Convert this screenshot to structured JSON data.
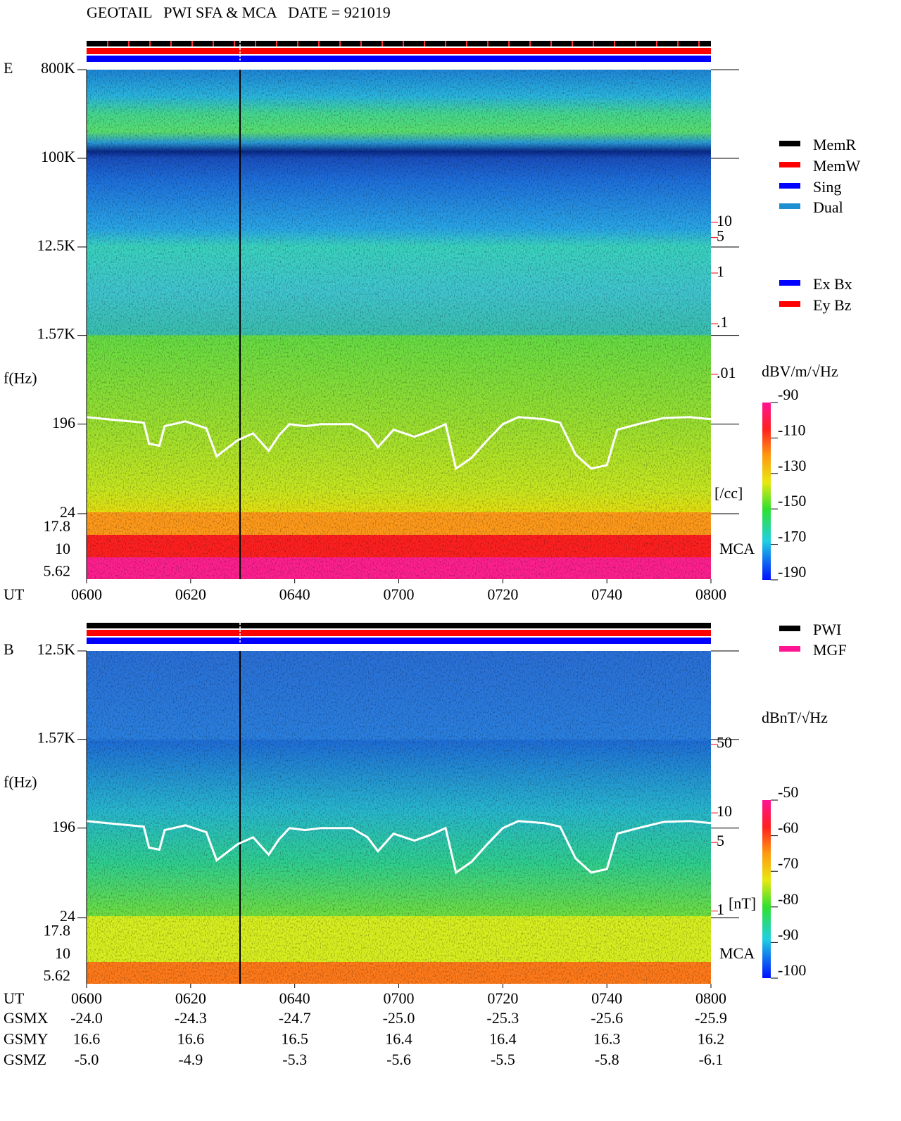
{
  "title": "GEOTAIL   PWI SFA & MCA   DATE = 921019",
  "chart_data": [
    {
      "type": "spectrogram",
      "panel_label": "E",
      "y_label": "f(Hz)",
      "x_label": "UT",
      "log_scale": true,
      "ylim": [
        24,
        800000
      ],
      "yticks": [
        {
          "value": 800000,
          "label": "800K"
        },
        {
          "value": 100000,
          "label": "100K"
        },
        {
          "value": 12500,
          "label": "12.5K"
        },
        {
          "value": 1570,
          "label": "1.57K"
        },
        196,
        24
      ],
      "mca_channels": [
        "17.8",
        "10",
        "5.62"
      ],
      "mca_label": "MCA",
      "xlim": [
        360,
        480
      ],
      "xticks": [
        {
          "value": 360,
          "label": "0600"
        },
        {
          "value": 380,
          "label": "0620"
        },
        {
          "value": 400,
          "label": "0640"
        },
        {
          "value": 420,
          "label": "0700"
        },
        {
          "value": 440,
          "label": "0720"
        },
        {
          "value": 460,
          "label": "0740"
        },
        {
          "value": 480,
          "label": "0800"
        }
      ],
      "side_scale": {
        "unit_label": "[/cc]",
        "color": "#ff0000",
        "ticks": [
          10,
          5,
          1,
          {
            "value": 0.1,
            "label": ".1"
          },
          {
            "value": 0.01,
            "label": ".01"
          }
        ]
      },
      "colorbar": {
        "label": "dBV/m/√Hz",
        "clim": [
          -190,
          -90
        ],
        "ticks": [
          -90,
          -110,
          -130,
          -150,
          -170,
          -190
        ]
      },
      "legend": [
        {
          "name": "MemR",
          "color": "#000000"
        },
        {
          "name": "MemW",
          "color": "#ff0000"
        },
        {
          "name": "Sing",
          "color": "#0000ff"
        },
        {
          "name": "Dual",
          "color": "#1e8fd0"
        }
      ],
      "legend2": [
        {
          "name": "Ex Bx",
          "color": "#0000ff"
        },
        {
          "name": "Ey Bz",
          "color": "#ff0000"
        }
      ]
    },
    {
      "type": "spectrogram",
      "panel_label": "B",
      "y_label": "f(Hz)",
      "x_label": "UT",
      "log_scale": true,
      "ylim": [
        24,
        12500
      ],
      "yticks": [
        {
          "value": 12500,
          "label": "12.5K"
        },
        {
          "value": 1570,
          "label": "1.57K"
        },
        196,
        24
      ],
      "mca_channels": [
        "17.8",
        "10",
        "5.62"
      ],
      "mca_label": "MCA",
      "xlim": [
        360,
        480
      ],
      "xticks": [
        {
          "value": 360,
          "label": "0600"
        },
        {
          "value": 380,
          "label": "0620"
        },
        {
          "value": 400,
          "label": "0640"
        },
        {
          "value": 420,
          "label": "0700"
        },
        {
          "value": 440,
          "label": "0720"
        },
        {
          "value": 460,
          "label": "0740"
        },
        {
          "value": 480,
          "label": "0800"
        }
      ],
      "side_scale": {
        "unit_label": "[nT]",
        "color": "#ff0000",
        "ticks": [
          50,
          10,
          5,
          1
        ]
      },
      "colorbar": {
        "label": "dBnT/√Hz",
        "clim": [
          -100,
          -50
        ],
        "ticks": [
          -50,
          -60,
          -70,
          -80,
          -90,
          -100
        ]
      },
      "legend": [
        {
          "name": "PWI",
          "color": "#000000"
        },
        {
          "name": "MGF",
          "color": "#ff1493"
        }
      ]
    }
  ],
  "trace": {
    "x": [
      360,
      364,
      371,
      372,
      374,
      375,
      379,
      383,
      385,
      389,
      392,
      395,
      397,
      399,
      402,
      405,
      408,
      411,
      414,
      416,
      419,
      423,
      426,
      429,
      431,
      434,
      437,
      440,
      443,
      448,
      451,
      454,
      457,
      460,
      462,
      466,
      471,
      476,
      480
    ],
    "values": [
      231,
      220,
      203,
      124,
      118,
      187,
      209,
      178,
      92,
      134,
      158,
      105,
      151,
      196,
      187,
      196,
      196,
      196,
      158,
      114,
      172,
      146,
      166,
      196,
      69,
      89,
      134,
      196,
      231,
      220,
      203,
      96,
      69,
      75,
      172,
      196,
      227,
      231,
      220
    ]
  },
  "orbit": {
    "rows": [
      {
        "label": "GSMX",
        "values": [
          "-24.0",
          "-24.3",
          "-24.7",
          "-25.0",
          "-25.3",
          "-25.6",
          "-25.9"
        ]
      },
      {
        "label": "GSMY",
        "values": [
          "16.6",
          "16.6",
          "16.5",
          "16.4",
          "16.4",
          "16.3",
          "16.2"
        ]
      },
      {
        "label": "GSMZ",
        "values": [
          "-5.0",
          "-4.9",
          "-5.3",
          "-5.6",
          "-5.5",
          "-5.8",
          "-6.1"
        ]
      }
    ]
  }
}
